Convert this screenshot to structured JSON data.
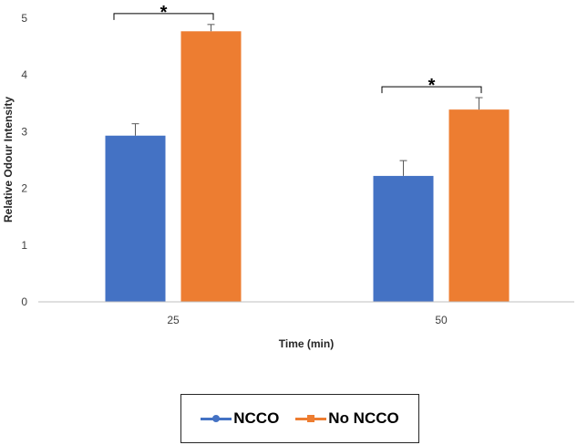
{
  "chart_data": {
    "type": "bar",
    "title": "",
    "xlabel": "Time (min)",
    "ylabel": "Relative Odour Intensity",
    "ylim": [
      0,
      5
    ],
    "yticks": [
      0,
      1,
      2,
      3,
      4,
      5
    ],
    "categories": [
      "25",
      "50"
    ],
    "series": [
      {
        "name": "NCCO",
        "values": [
          2.93,
          2.22
        ],
        "errors": [
          0.21,
          0.27
        ],
        "color": "#4472C4",
        "marker": "circle"
      },
      {
        "name": "No NCCO",
        "values": [
          4.77,
          3.39
        ],
        "errors": [
          0.12,
          0.21
        ],
        "color": "#ED7D31",
        "marker": "square"
      }
    ],
    "annotations": [
      {
        "category": "25",
        "text": "*"
      },
      {
        "category": "50",
        "text": "*"
      }
    ],
    "legend_position": "bottom"
  }
}
